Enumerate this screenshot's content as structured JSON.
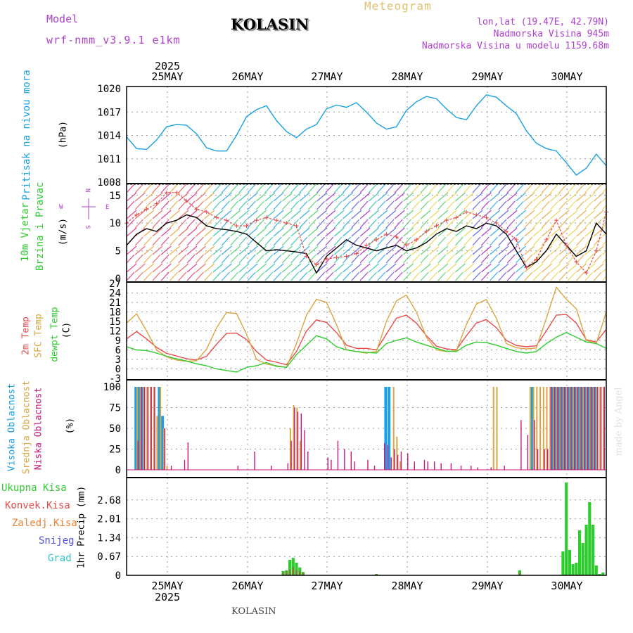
{
  "header": {
    "model_label": "Model",
    "model_name": "wrf-nmm_v3.9.1 e1km",
    "station": "KOLASIN",
    "title": "Meteogram",
    "coords": "lon,lat (19.47E, 42.79N)",
    "elevation": "Nadmorska Visina 945m",
    "model_elevation": "Nadmorska Visina u modelu 1159.68m",
    "footer_station": "KOLASIN",
    "credit": "made by Angel"
  },
  "colors": {
    "pressure": "#1aa0e6",
    "temp2m": "#e84c4c",
    "sfctemp": "#d9a640",
    "dewpoint": "#2ecc2e",
    "high_cloud": "#1aa0e6",
    "mid_cloud": "#d9a640",
    "low_cloud": "#c8187a",
    "total_rain": "#2ecc2e",
    "conv_rain": "#e84c4c",
    "freezing_rain": "#f08030",
    "snow": "#5050e0",
    "hail": "#30c0c0",
    "purple_text": "#b040d0",
    "gold_text": "#e0c070"
  },
  "time_axis": {
    "year": "2025",
    "days": [
      "25MAY",
      "26MAY",
      "27MAY",
      "28MAY",
      "29MAY",
      "30MAY"
    ]
  },
  "panels": {
    "pressure": {
      "label1": "Pritisak na nivou mora",
      "unit": "(hPa)"
    },
    "wind": {
      "label1": "10m Vjetar",
      "label2": "Brzina i Pravac",
      "unit": "(m/s)",
      "compass_left": "W",
      "compass_right": "E",
      "compass_top": "N",
      "compass_bottom": "S"
    },
    "temp": {
      "label1": "2m Temp",
      "label2": "SFC Temp",
      "label3": "dewpt Temp",
      "unit": "(C)"
    },
    "cloud": {
      "label1": "Visoka Oblacnost",
      "label2": "Srednja Oblacnost",
      "label3": "Niska Oblacnost",
      "unit": "(%)"
    },
    "precip": {
      "unit": "1hr Precip (mm)",
      "legend": [
        "Ukupna Kisa",
        "Konvek.Kisa",
        "Zaledj.Kisa",
        "Snijeg",
        "Grad"
      ]
    }
  },
  "chart_data": [
    {
      "type": "line",
      "name": "pressure",
      "x_unit": "hours from 24MAY 12UTC",
      "ylim": [
        1008,
        1020
      ],
      "yticks": [
        "1020",
        "1017",
        "1014",
        "1011",
        "1008"
      ],
      "series": [
        {
          "x": [
            0,
            3,
            6,
            9,
            12,
            15,
            18,
            21,
            24,
            27,
            30,
            33,
            36,
            39,
            42,
            45,
            48,
            51,
            54,
            57,
            60,
            63,
            66,
            69,
            72,
            75,
            78,
            81,
            84,
            87,
            90,
            93,
            96,
            99,
            102,
            105,
            108,
            111,
            114,
            117,
            120,
            123,
            126,
            129,
            132,
            135,
            138,
            141,
            144
          ],
          "values": [
            1013.8,
            1012.3,
            1012.2,
            1013.4,
            1015.1,
            1015.4,
            1015.3,
            1014.2,
            1012.4,
            1012.0,
            1012.0,
            1014.0,
            1016.4,
            1017.3,
            1017.8,
            1015.9,
            1014.5,
            1013.7,
            1014.8,
            1015.4,
            1017.4,
            1017.9,
            1017.6,
            1018.2,
            1017.0,
            1015.6,
            1014.8,
            1015.1,
            1017.2,
            1018.3,
            1019.0,
            1018.7,
            1017.4,
            1016.3,
            1016.0,
            1017.8,
            1019.2,
            1018.9,
            1017.8,
            1016.8,
            1014.6,
            1013.0,
            1012.3,
            1012.0,
            1010.5,
            1008.9,
            1009.8,
            1011.6,
            1010.1
          ]
        }
      ]
    },
    {
      "type": "line",
      "name": "wind",
      "ylim": [
        0,
        17
      ],
      "yticks": [
        "15",
        "10",
        "5",
        "0"
      ],
      "series": [
        {
          "x": [
            0,
            3,
            6,
            9,
            12,
            15,
            18,
            21,
            24,
            27,
            30,
            33,
            36,
            39,
            42,
            45,
            48,
            51,
            54,
            57,
            60,
            63,
            66,
            69,
            72,
            75,
            78,
            81,
            84,
            87,
            90,
            93,
            96,
            99,
            102,
            105,
            108,
            111,
            114,
            117,
            120,
            123,
            126,
            129,
            132,
            135,
            138,
            141,
            144
          ],
          "values": [
            6.0,
            8.0,
            9.0,
            8.5,
            10.0,
            10.5,
            11.5,
            11.0,
            9.5,
            9.0,
            8.8,
            8.5,
            8.0,
            6.5,
            5.0,
            5.2,
            5.0,
            4.8,
            4.5,
            1.0,
            4.0,
            5.5,
            7.0,
            6.0,
            5.5,
            5.0,
            5.5,
            6.0,
            5.0,
            5.5,
            6.5,
            8.0,
            9.0,
            8.5,
            9.5,
            9.0,
            10.0,
            9.5,
            8.0,
            5.0,
            2.0,
            3.0,
            5.0,
            8.0,
            6.0,
            4.0,
            5.0,
            10.0,
            8.0
          ]
        },
        {
          "x": [
            0,
            3,
            6,
            9,
            12,
            15,
            18,
            21,
            24,
            27,
            30,
            33,
            36,
            39,
            42,
            45,
            48,
            51,
            54,
            57,
            60,
            63,
            66,
            69,
            72,
            75,
            78,
            81,
            84,
            87,
            90,
            93,
            96,
            99,
            102,
            105,
            108,
            111,
            114,
            117,
            120,
            123,
            126,
            129,
            132,
            135,
            138,
            141,
            144
          ],
          "values": [
            10.0,
            11.5,
            12.5,
            13.5,
            15.5,
            15.5,
            14.0,
            12.5,
            12.0,
            11.0,
            10.5,
            9.5,
            9.5,
            10.5,
            11.0,
            10.5,
            10.0,
            9.5,
            4.0,
            2.5,
            3.5,
            3.8,
            4.0,
            4.5,
            6.0,
            7.0,
            8.0,
            7.5,
            6.0,
            7.0,
            8.5,
            9.5,
            10.5,
            11.0,
            12.0,
            11.5,
            11.0,
            10.0,
            8.5,
            7.0,
            2.0,
            3.5,
            7.0,
            10.5,
            6.0,
            3.0,
            1.0,
            5.0,
            12.0
          ]
        }
      ]
    },
    {
      "type": "line",
      "name": "temperature",
      "ylim": [
        -3,
        27
      ],
      "yticks": [
        "27",
        "24",
        "21",
        "18",
        "15",
        "12",
        "9",
        "6",
        "3",
        "0",
        "-3"
      ],
      "series": [
        {
          "x": [
            0,
            3,
            6,
            9,
            12,
            15,
            18,
            21,
            24,
            27,
            30,
            33,
            36,
            39,
            42,
            45,
            48,
            51,
            54,
            57,
            60,
            63,
            66,
            69,
            72,
            75,
            78,
            81,
            84,
            87,
            90,
            93,
            96,
            99,
            102,
            105,
            108,
            111,
            114,
            117,
            120,
            123,
            126,
            129,
            132,
            135,
            138,
            141,
            144
          ],
          "values": [
            9.5,
            11.8,
            9.5,
            6.8,
            4.9,
            4.1,
            3.2,
            2.8,
            4.0,
            7.8,
            11.2,
            11.3,
            9.3,
            5.5,
            2.8,
            2.1,
            1.3,
            5.5,
            12.0,
            15.5,
            14.7,
            11.5,
            7.5,
            6.5,
            6.5,
            6.0,
            11.0,
            16.0,
            17.0,
            14.5,
            10.5,
            7.2,
            6.3,
            6.1,
            10.5,
            14.5,
            15.6,
            13.0,
            9.0,
            7.4,
            7.0,
            7.3,
            12.0,
            17.0,
            17.2,
            14.5,
            9.2,
            8.5,
            12.5
          ]
        },
        {
          "x": [
            0,
            3,
            6,
            9,
            12,
            15,
            18,
            21,
            24,
            27,
            30,
            33,
            36,
            39,
            42,
            45,
            48,
            51,
            54,
            57,
            60,
            63,
            66,
            69,
            72,
            75,
            78,
            81,
            84,
            87,
            90,
            93,
            96,
            99,
            102,
            105,
            108,
            111,
            114,
            117,
            120,
            123,
            126,
            129,
            132,
            135,
            138,
            141,
            144
          ],
          "values": [
            14.5,
            17.4,
            12.0,
            6.0,
            3.8,
            2.8,
            2.4,
            2.6,
            6.2,
            13.0,
            17.8,
            17.5,
            11.0,
            3.0,
            1.5,
            1.0,
            0.5,
            8.0,
            17.0,
            22.0,
            21.0,
            14.0,
            6.0,
            5.5,
            5.0,
            5.5,
            15.0,
            21.5,
            23.3,
            18.0,
            10.0,
            6.0,
            5.5,
            5.8,
            14.0,
            20.5,
            21.9,
            16.0,
            8.0,
            6.7,
            6.3,
            6.6,
            16.0,
            25.8,
            22.0,
            19.0,
            9.0,
            8.0,
            18.0
          ]
        },
        {
          "x": [
            0,
            3,
            6,
            9,
            12,
            15,
            18,
            21,
            24,
            27,
            30,
            33,
            36,
            39,
            42,
            45,
            48,
            51,
            54,
            57,
            60,
            63,
            66,
            69,
            72,
            75,
            78,
            81,
            84,
            87,
            90,
            93,
            96,
            99,
            102,
            105,
            108,
            111,
            114,
            117,
            120,
            123,
            126,
            129,
            132,
            135,
            138,
            141,
            144
          ],
          "values": [
            7.0,
            6.0,
            5.8,
            5.0,
            4.0,
            3.2,
            2.5,
            1.6,
            1.0,
            0.0,
            -0.5,
            -1.0,
            0.5,
            1.0,
            2.0,
            0.8,
            0.5,
            4.5,
            7.5,
            10.5,
            9.5,
            7.0,
            6.0,
            5.5,
            5.2,
            5.0,
            8.0,
            9.0,
            9.8,
            8.5,
            7.5,
            6.5,
            5.6,
            5.5,
            7.5,
            8.5,
            8.3,
            7.5,
            6.5,
            5.5,
            5.0,
            5.5,
            8.0,
            10.0,
            11.5,
            10.0,
            8.5,
            8.0,
            6.5
          ]
        }
      ]
    },
    {
      "type": "bar",
      "name": "cloud",
      "ylim": [
        0,
        100
      ],
      "yticks": [
        "100",
        "75",
        "50",
        "25",
        "0"
      ],
      "series": [
        {
          "x": [
            3,
            4,
            5,
            10,
            11,
            78,
            79,
            122,
            128,
            129,
            130,
            131,
            132,
            133,
            134,
            135,
            136,
            137,
            138,
            139,
            140,
            141
          ],
          "values": [
            100,
            100,
            100,
            100,
            65,
            100,
            100,
            100,
            100,
            100,
            100,
            100,
            100,
            100,
            100,
            100,
            100,
            100,
            100,
            100,
            100,
            100
          ]
        },
        {
          "x": [
            3,
            4,
            5,
            6,
            7,
            8,
            9,
            10,
            11,
            12,
            49,
            50,
            51,
            52,
            80,
            81,
            82,
            110,
            111,
            121,
            122,
            123,
            124,
            125,
            126,
            127,
            128,
            129,
            130,
            131,
            132,
            133,
            134,
            135,
            136,
            137,
            138,
            139,
            140,
            141,
            142,
            143
          ],
          "values": [
            100,
            100,
            100,
            100,
            100,
            100,
            65,
            100,
            50,
            5,
            50,
            78,
            75,
            35,
            100,
            40,
            10,
            100,
            100,
            100,
            100,
            100,
            100,
            100,
            100,
            100,
            100,
            100,
            100,
            100,
            100,
            100,
            100,
            100,
            100,
            100,
            100,
            100,
            100,
            100,
            100,
            100
          ]
        },
        {
          "x": [
            3,
            4,
            5,
            6,
            7,
            8,
            11,
            13,
            17,
            18,
            33,
            38,
            43,
            48,
            49,
            50,
            51,
            52,
            53,
            54,
            60,
            61,
            63,
            65,
            67,
            68,
            72,
            74,
            77,
            78,
            79,
            80,
            81,
            82,
            84,
            86,
            89,
            90,
            92,
            94,
            97,
            100,
            103,
            105,
            109,
            113,
            118,
            120,
            122,
            123,
            125,
            126,
            127,
            128,
            129,
            130,
            131,
            132,
            133,
            134,
            135,
            136,
            137,
            138,
            139,
            140,
            141,
            142,
            143
          ],
          "values": [
            35,
            100,
            100,
            100,
            100,
            100,
            50,
            5,
            12,
            33,
            5,
            22,
            5,
            8,
            35,
            75,
            70,
            68,
            48,
            22,
            15,
            12,
            35,
            25,
            22,
            10,
            12,
            5,
            32,
            30,
            15,
            25,
            18,
            22,
            20,
            10,
            12,
            10,
            10,
            8,
            8,
            5,
            5,
            3,
            3,
            5,
            60,
            42,
            60,
            25,
            25,
            25,
            100,
            100,
            100,
            100,
            100,
            100,
            100,
            100,
            100,
            100,
            100,
            100,
            100,
            100,
            100,
            100,
            100
          ]
        }
      ]
    },
    {
      "type": "bar",
      "name": "precipitation",
      "ylim": [
        0,
        3.35
      ],
      "yticks": [
        "2.68",
        "2.01",
        "1.34",
        "0.67",
        "0"
      ],
      "series": [
        {
          "x": [
            47,
            48,
            49,
            50,
            51,
            52,
            53,
            75,
            118,
            131,
            132,
            133,
            134,
            135,
            136,
            137,
            138,
            139,
            140,
            141,
            142,
            143
          ],
          "values": [
            0.15,
            0.18,
            0.55,
            0.62,
            0.45,
            0.28,
            0.12,
            0.05,
            0.18,
            0.85,
            3.3,
            0.9,
            0.4,
            0.45,
            1.6,
            1.15,
            1.8,
            2.6,
            1.8,
            0.35,
            0.05,
            0.1
          ]
        },
        {
          "x": [
            47,
            48,
            49,
            50,
            51,
            52,
            53,
            75,
            118
          ],
          "values": [
            0.1,
            0.15,
            0.2,
            0.3,
            0.2,
            0.15,
            0.1,
            0.05,
            0.1
          ]
        }
      ]
    }
  ]
}
